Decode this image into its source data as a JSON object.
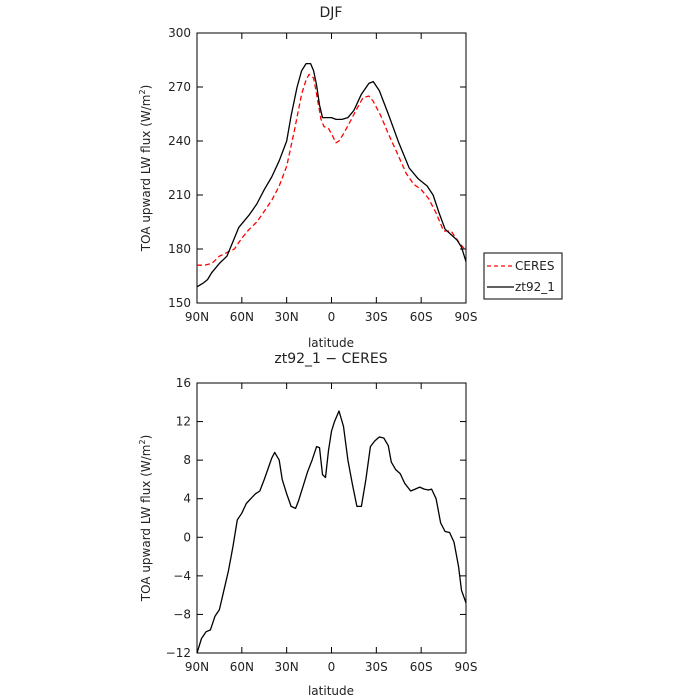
{
  "chart_data": [
    {
      "type": "line",
      "title": "DJF",
      "xlabel": "latitude",
      "ylabel": "TOA upward LW flux (W/m²)",
      "ylabel_main": "TOA upward LW flux (W/m",
      "ylabel_sup": "2",
      "ylabel_end": ")",
      "x_ticks": [
        90,
        60,
        30,
        0,
        -30,
        -60,
        -90
      ],
      "x_tick_labels": [
        "90N",
        "60N",
        "30N",
        "0",
        "30S",
        "60S",
        "90S"
      ],
      "xlim": [
        90,
        -90
      ],
      "y_ticks": [
        150,
        180,
        210,
        240,
        270,
        300
      ],
      "y_tick_labels": [
        "150",
        "180",
        "210",
        "240",
        "270",
        "300"
      ],
      "ylim": [
        150,
        300
      ],
      "legend": "right-outside",
      "series": [
        {
          "name": "CERES",
          "color": "#ff0000",
          "dash": true,
          "points": [
            [
              90,
              171
            ],
            [
              85,
              171
            ],
            [
              80,
              172
            ],
            [
              75,
              176
            ],
            [
              70,
              178
            ],
            [
              65,
              180
            ],
            [
              60,
              186
            ],
            [
              55,
              191
            ],
            [
              50,
              195
            ],
            [
              45,
              201
            ],
            [
              40,
              207
            ],
            [
              35,
              215
            ],
            [
              30,
              226
            ],
            [
              25,
              245
            ],
            [
              20,
              266
            ],
            [
              17,
              274
            ],
            [
              15,
              277
            ],
            [
              12,
              275
            ],
            [
              10,
              266
            ],
            [
              7,
              252
            ],
            [
              5,
              248
            ],
            [
              2,
              247
            ],
            [
              0,
              244
            ],
            [
              -3,
              239
            ],
            [
              -5,
              240
            ],
            [
              -8,
              244
            ],
            [
              -12,
              250
            ],
            [
              -17,
              258
            ],
            [
              -21,
              264
            ],
            [
              -25,
              265
            ],
            [
              -28,
              262
            ],
            [
              -33,
              254
            ],
            [
              -38,
              244
            ],
            [
              -43,
              235
            ],
            [
              -50,
              222
            ],
            [
              -55,
              216
            ],
            [
              -60,
              213
            ],
            [
              -65,
              208
            ],
            [
              -70,
              200
            ],
            [
              -75,
              190
            ],
            [
              -80,
              190
            ],
            [
              -85,
              184
            ],
            [
              -90,
              179
            ]
          ]
        },
        {
          "name": "zt92_1",
          "color": "#000000",
          "dash": false,
          "points": [
            [
              90,
              159
            ],
            [
              86,
              161
            ],
            [
              83,
              163
            ],
            [
              80,
              167
            ],
            [
              75,
              172
            ],
            [
              70,
              176
            ],
            [
              66,
              184
            ],
            [
              62,
              192
            ],
            [
              58,
              196
            ],
            [
              55,
              199
            ],
            [
              50,
              205
            ],
            [
              45,
              213
            ],
            [
              40,
              220
            ],
            [
              35,
              229
            ],
            [
              30,
              240
            ],
            [
              27,
              254
            ],
            [
              23,
              270
            ],
            [
              20,
              279
            ],
            [
              17,
              283
            ],
            [
              14,
              283
            ],
            [
              12,
              279
            ],
            [
              10,
              271
            ],
            [
              8,
              260
            ],
            [
              6,
              253
            ],
            [
              3,
              253
            ],
            [
              0,
              253
            ],
            [
              -3,
              252
            ],
            [
              -7,
              252
            ],
            [
              -11,
              253
            ],
            [
              -15,
              257
            ],
            [
              -20,
              266
            ],
            [
              -25,
              272
            ],
            [
              -28,
              273
            ],
            [
              -32,
              268
            ],
            [
              -38,
              255
            ],
            [
              -45,
              239
            ],
            [
              -52,
              225
            ],
            [
              -58,
              219
            ],
            [
              -64,
              215
            ],
            [
              -68,
              210
            ],
            [
              -72,
              200
            ],
            [
              -76,
              191
            ],
            [
              -80,
              188
            ],
            [
              -84,
              185
            ],
            [
              -87,
              181
            ],
            [
              -90,
              173
            ]
          ]
        }
      ]
    },
    {
      "type": "line",
      "title": "zt92_1 − CERES",
      "xlabel": "latitude",
      "ylabel": "TOA upward LW flux (W/m²)",
      "ylabel_main": "TOA upward LW flux (W/m",
      "ylabel_sup": "2",
      "ylabel_end": ")",
      "x_ticks": [
        90,
        60,
        30,
        0,
        -30,
        -60,
        -90
      ],
      "x_tick_labels": [
        "90N",
        "60N",
        "30N",
        "0",
        "30S",
        "60S",
        "90S"
      ],
      "xlim": [
        90,
        -90
      ],
      "y_ticks": [
        -12,
        -8,
        -4,
        0,
        4,
        8,
        12,
        16
      ],
      "y_tick_labels": [
        "−12",
        "−8",
        "−4",
        "0",
        "4",
        "8",
        "12",
        "16"
      ],
      "ylim": [
        -12,
        16
      ],
      "series": [
        {
          "color": "#000000",
          "dash": false,
          "points": [
            [
              90,
              -12
            ],
            [
              87,
              -10.5
            ],
            [
              84,
              -9.8
            ],
            [
              81,
              -9.6
            ],
            [
              78,
              -8.2
            ],
            [
              75,
              -7.5
            ],
            [
              72,
              -5.5
            ],
            [
              69,
              -3.5
            ],
            [
              66,
              -1
            ],
            [
              63,
              1.8
            ],
            [
              60,
              2.5
            ],
            [
              57,
              3.5
            ],
            [
              54,
              4
            ],
            [
              51,
              4.5
            ],
            [
              48,
              4.8
            ],
            [
              45,
              6
            ],
            [
              42,
              7.3
            ],
            [
              40,
              8.2
            ],
            [
              38,
              8.8
            ],
            [
              35,
              8
            ],
            [
              33,
              6
            ],
            [
              30,
              4.5
            ],
            [
              27,
              3.2
            ],
            [
              24,
              3
            ],
            [
              22,
              3.8
            ],
            [
              19,
              5.3
            ],
            [
              16,
              6.8
            ],
            [
              13,
              8
            ],
            [
              10,
              9.4
            ],
            [
              8,
              9.3
            ],
            [
              6,
              6.5
            ],
            [
              4,
              6.2
            ],
            [
              2,
              9
            ],
            [
              0,
              11
            ],
            [
              -2,
              12
            ],
            [
              -5,
              13.1
            ],
            [
              -8,
              11.5
            ],
            [
              -11,
              8
            ],
            [
              -14,
              5.5
            ],
            [
              -17,
              3.2
            ],
            [
              -20,
              3.2
            ],
            [
              -23,
              6
            ],
            [
              -26,
              9.4
            ],
            [
              -29,
              10
            ],
            [
              -32,
              10.4
            ],
            [
              -35,
              10.3
            ],
            [
              -38,
              9.5
            ],
            [
              -40,
              7.8
            ],
            [
              -43,
              7
            ],
            [
              -46,
              6.6
            ],
            [
              -49,
              5.6
            ],
            [
              -53,
              4.8
            ],
            [
              -56,
              5
            ],
            [
              -59,
              5.2
            ],
            [
              -62,
              5
            ],
            [
              -65,
              4.9
            ],
            [
              -67,
              5
            ],
            [
              -70,
              4
            ],
            [
              -73,
              1.5
            ],
            [
              -76,
              0.6
            ],
            [
              -79,
              0.5
            ],
            [
              -82,
              -0.5
            ],
            [
              -85,
              -3
            ],
            [
              -87,
              -5.5
            ],
            [
              -90,
              -6.8
            ]
          ]
        }
      ]
    }
  ]
}
